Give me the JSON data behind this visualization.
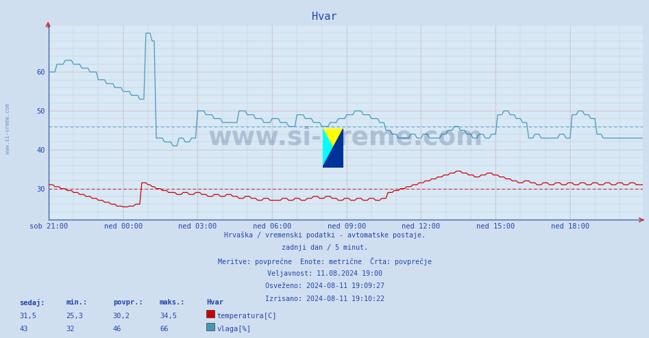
{
  "title": "Hvar",
  "bg_color": "#d0dff0",
  "plot_bg_color": "#d8e8f5",
  "temp_color": "#cc0000",
  "hum_color": "#4499bb",
  "temp_avg_line": 30.0,
  "hum_avg_line": 46.0,
  "ymin": 22,
  "ymax": 72,
  "yticks": [
    30,
    40,
    50,
    60
  ],
  "x_labels": [
    "sob 21:00",
    "ned 00:00",
    "ned 03:00",
    "ned 06:00",
    "ned 09:00",
    "ned 12:00",
    "ned 15:00",
    "ned 18:00"
  ],
  "footer_lines": [
    "Hrvaška / vremenski podatki - avtomatske postaje.",
    "zadnji dan / 5 minut.",
    "Meritve: povprečne  Enote: metrične  Črta: povprečje",
    "Veljavnost: 11.08.2024 19:00",
    "Osveženo: 2024-08-11 19:09:27",
    "Izrisano: 2024-08-11 19:10:22"
  ],
  "legend_headers": [
    "sedaj:",
    "min.:",
    "povpr.:",
    "maks.:"
  ],
  "legend_temp_vals": [
    "31,5",
    "25,3",
    "30,2",
    "34,5"
  ],
  "legend_hum_vals": [
    "43",
    "32",
    "46",
    "66"
  ],
  "label_temp": "temperatura[C]",
  "label_hum": "vlaga[%]",
  "label_station": "Hvar",
  "watermark": "www.si-vreme.com",
  "watermark_color": "#1a3a6a",
  "watermark_alpha": 0.22,
  "sidebar_text": "www.si-vreme.com",
  "sidebar_color": "#2255aa",
  "text_color": "#2244aa"
}
